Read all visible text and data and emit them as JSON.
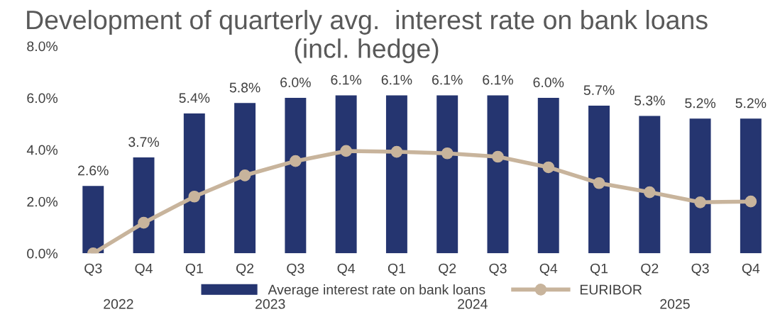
{
  "chart_data": {
    "type": "bar",
    "title": "Development of quarterly avg.  interest rate on bank loans (incl. hedge)",
    "categories": [
      "Q3",
      "Q4",
      "Q1",
      "Q2",
      "Q3",
      "Q4",
      "Q1",
      "Q2",
      "Q3",
      "Q4",
      "Q1",
      "Q2",
      "Q3",
      "Q4"
    ],
    "series": [
      {
        "name": "Average interest rate on bank loans",
        "color": "#253570",
        "values": [
          2.6,
          3.7,
          5.4,
          5.8,
          6.0,
          6.1,
          6.1,
          6.1,
          6.1,
          6.0,
          5.7,
          5.3,
          5.2,
          5.2
        ],
        "value_labels": [
          "2.6%",
          "3.7%",
          "5.4%",
          "5.8%",
          "6.0%",
          "6.1%",
          "6.1%",
          "6.1%",
          "6.1%",
          "6.0%",
          "5.7%",
          "5.3%",
          "5.2%",
          "5.2%"
        ]
      },
      {
        "name": "EURIBOR",
        "type": "line",
        "color": "#c8b49c",
        "marker": "circle",
        "values": [
          0.0,
          1.18,
          2.19,
          3.01,
          3.56,
          3.95,
          3.92,
          3.86,
          3.73,
          3.32,
          2.71,
          2.36,
          1.97,
          2.0
        ]
      }
    ],
    "ylim": [
      0,
      8
    ],
    "yticks": [
      {
        "value": 0,
        "label": "0.0%"
      },
      {
        "value": 2,
        "label": "2.0%"
      },
      {
        "value": 4,
        "label": "4.0%"
      },
      {
        "value": 6,
        "label": "6.0%"
      },
      {
        "value": 8,
        "label": "8.0%"
      }
    ],
    "annotations": [
      "2022",
      "2023",
      "2024",
      "2025"
    ],
    "legend": "bottom",
    "grid": false
  }
}
